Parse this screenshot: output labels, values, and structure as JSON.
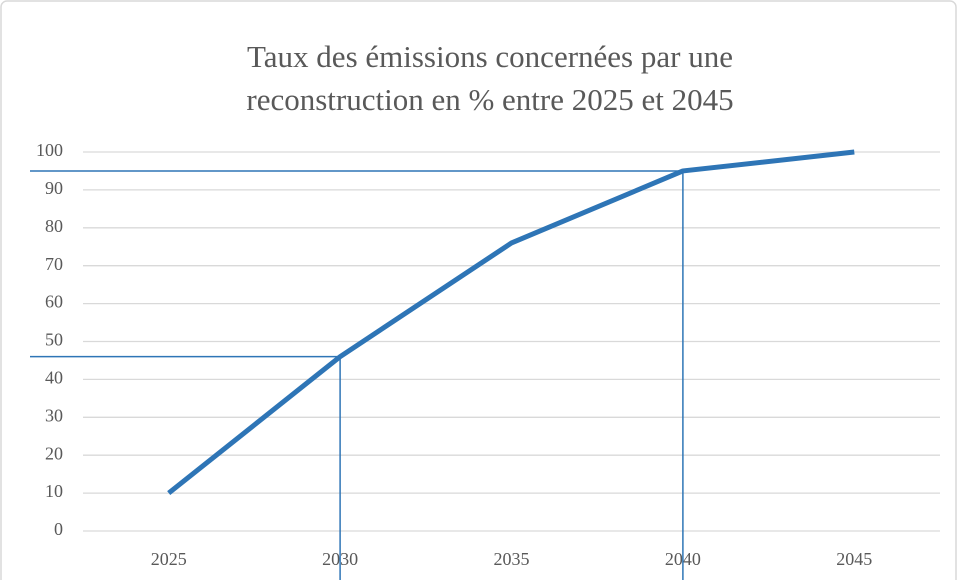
{
  "chart_data": {
    "type": "line",
    "title": [
      "Taux des émissions concernées par une",
      "reconstruction en % entre 2025 et 2045"
    ],
    "categories": [
      "2025",
      "2030",
      "2035",
      "2040",
      "2045"
    ],
    "values": [
      10,
      46,
      76,
      95,
      100
    ],
    "color": "#2e75b6",
    "ylim": [
      0,
      100
    ],
    "yticks": [
      0,
      10,
      20,
      30,
      40,
      50,
      60,
      70,
      80,
      90,
      100
    ],
    "grid": true
  }
}
